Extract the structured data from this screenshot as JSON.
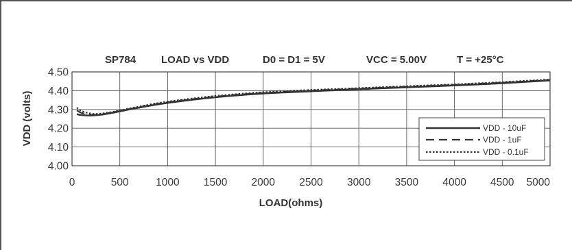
{
  "chart_data": {
    "type": "line",
    "title_parts": [
      "SP784",
      "LOAD vs VDD",
      "D0 = D1 = 5V",
      "VCC = 5.00V",
      "T = +25°C"
    ],
    "xlabel": "LOAD(ohms)",
    "ylabel": "VDD (volts)",
    "xlim": [
      0,
      5000
    ],
    "ylim": [
      4.0,
      4.5
    ],
    "x_ticks": [
      0,
      500,
      1000,
      1500,
      2000,
      2500,
      3000,
      3500,
      4000,
      4500,
      5000
    ],
    "y_ticks": [
      "4.00",
      "4.10",
      "4.20",
      "4.30",
      "4.40",
      "4.50"
    ],
    "grid": true,
    "legend_position": "bottom-right",
    "series": [
      {
        "name": "VDD - 10uF",
        "style": "solid",
        "color": "#333333",
        "x": [
          50,
          100,
          200,
          300,
          400,
          500,
          700,
          1000,
          1500,
          2000,
          2500,
          3000,
          3500,
          4000,
          4500,
          5000
        ],
        "y": [
          4.275,
          4.27,
          4.268,
          4.272,
          4.28,
          4.29,
          4.31,
          4.335,
          4.365,
          4.385,
          4.397,
          4.408,
          4.418,
          4.428,
          4.44,
          4.455
        ]
      },
      {
        "name": "VDD - 1uF",
        "style": "dashed",
        "color": "#333333",
        "x": [
          50,
          100,
          200,
          300,
          400,
          500,
          700,
          1000,
          1500,
          2000,
          2500,
          3000,
          3500,
          4000,
          4500,
          5000
        ],
        "y": [
          4.295,
          4.282,
          4.272,
          4.274,
          4.282,
          4.292,
          4.312,
          4.338,
          4.368,
          4.388,
          4.4,
          4.411,
          4.421,
          4.431,
          4.443,
          4.457
        ]
      },
      {
        "name": "VDD - 0.1uF",
        "style": "dotted",
        "color": "#333333",
        "x": [
          50,
          100,
          200,
          300,
          400,
          500,
          700,
          1000,
          1500,
          2000,
          2500,
          3000,
          3500,
          4000,
          4500,
          5000
        ],
        "y": [
          4.31,
          4.292,
          4.278,
          4.278,
          4.285,
          4.295,
          4.315,
          4.342,
          4.372,
          4.392,
          4.404,
          4.414,
          4.424,
          4.434,
          4.446,
          4.46
        ]
      }
    ]
  }
}
